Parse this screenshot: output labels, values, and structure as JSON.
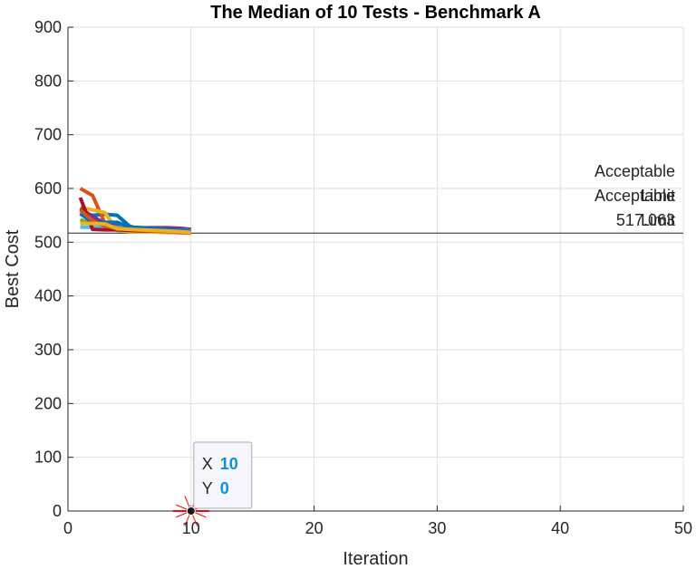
{
  "chart_data": {
    "type": "line",
    "title": "The Median of 10 Tests - Benchmark A",
    "xlabel": "Iteration",
    "ylabel": "Best Cost",
    "xlim": [
      0,
      50
    ],
    "ylim": [
      0,
      900
    ],
    "xticks": [
      0,
      10,
      20,
      30,
      40,
      50
    ],
    "yticks": [
      0,
      100,
      200,
      300,
      400,
      500,
      600,
      700,
      800,
      900
    ],
    "grid": true,
    "x": [
      1,
      2,
      3,
      4,
      5,
      6,
      7,
      8,
      9,
      10
    ],
    "series": [
      {
        "color": "#0072BD",
        "values": [
          555,
          550,
          552,
          550,
          530,
          523,
          520,
          520,
          519,
          518
        ]
      },
      {
        "color": "#D95319",
        "values": [
          600,
          587,
          535,
          527,
          526,
          525,
          524,
          522,
          520,
          517
        ]
      },
      {
        "color": "#EDB120",
        "values": [
          565,
          560,
          555,
          522,
          520,
          519,
          519,
          518,
          518,
          517
        ]
      },
      {
        "color": "#7E2F8E",
        "values": [
          563,
          548,
          535,
          530,
          528,
          527,
          527,
          527,
          526,
          524
        ]
      },
      {
        "color": "#77AC30",
        "values": [
          542,
          533,
          530,
          528,
          527,
          525,
          524,
          522,
          521,
          520
        ]
      },
      {
        "color": "#4DBEEE",
        "values": [
          528,
          528,
          527,
          527,
          526,
          525,
          524,
          523,
          522,
          521
        ]
      },
      {
        "color": "#A2142F",
        "values": [
          583,
          524,
          523,
          523,
          522,
          521,
          521,
          520,
          520,
          519
        ]
      },
      {
        "color": "#0072BD",
        "values": [
          553,
          537,
          537,
          537,
          528,
          527,
          525,
          524,
          522,
          520
        ]
      },
      {
        "color": "#D95319",
        "values": [
          560,
          540,
          530,
          526,
          524,
          522,
          521,
          520,
          518,
          517
        ]
      },
      {
        "color": "#EDB120",
        "values": [
          535,
          535,
          534,
          525,
          524,
          523,
          522,
          521,
          520,
          518
        ]
      }
    ],
    "reference_line": {
      "y": 517.063,
      "color": "#262626"
    },
    "annotations": [
      {
        "lines": [
          "Acceptable",
          "Limit",
          "517.063"
        ]
      },
      {
        "lines": [
          "",
          "Acceptable",
          "Limit"
        ]
      }
    ],
    "datatip": {
      "x": 10,
      "y": 0,
      "x_label": "X",
      "y_label": "Y",
      "x_text": "10",
      "y_text": "0"
    }
  }
}
